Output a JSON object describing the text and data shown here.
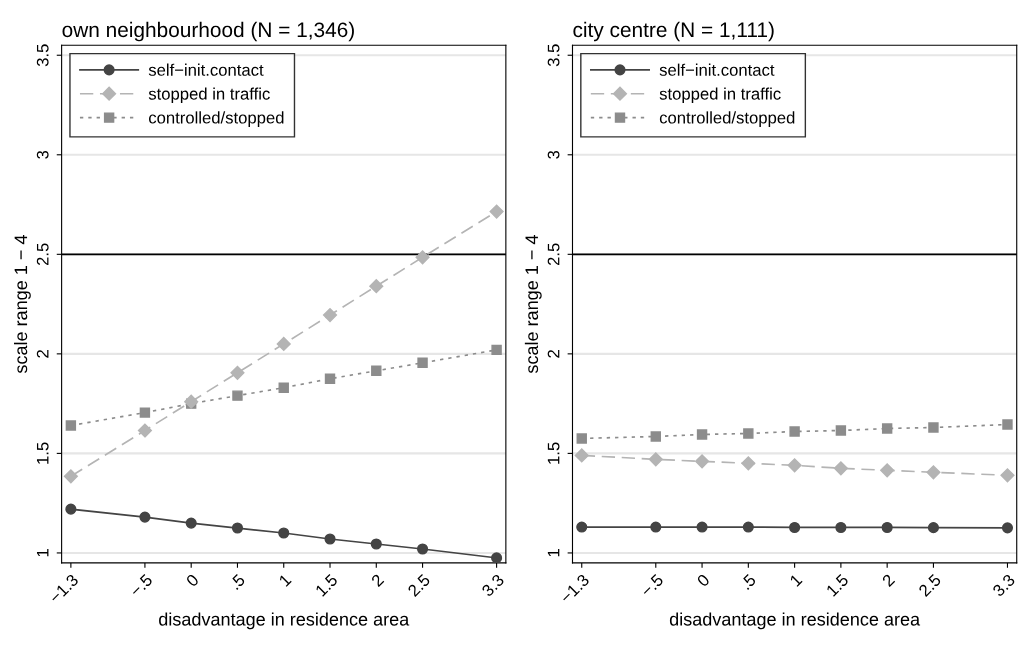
{
  "chart_data": [
    {
      "type": "line",
      "title": "own neighbourhood (N = 1,346)",
      "xlabel": "disadvantage in residence area",
      "ylabel": "scale range 1 − 4",
      "x": [
        -1.3,
        -0.5,
        0,
        0.5,
        1,
        1.5,
        2,
        2.5,
        3.3
      ],
      "xlim": [
        -1.4,
        3.4
      ],
      "ylim": [
        0.95,
        3.55
      ],
      "xticks": [
        {
          "value": -1.3,
          "label": "−1.3"
        },
        {
          "value": -0.5,
          "label": "−.5"
        },
        0,
        {
          "value": 0.5,
          "label": ".5"
        },
        1,
        1.5,
        2,
        2.5,
        3.3
      ],
      "yticks": [
        1,
        1.5,
        2,
        2.5,
        3,
        3.5
      ],
      "grid": "y",
      "legend": "top left",
      "ref_lines": [
        {
          "axis": "y",
          "value": 2.5,
          "label": null,
          "color": "#000000",
          "line_style": "solid"
        }
      ],
      "series": [
        {
          "name": "self−init.contact",
          "color": "#444444",
          "marker": "circle",
          "line_style": "solid",
          "values": [
            1.22,
            1.18,
            1.15,
            1.125,
            1.1,
            1.07,
            1.045,
            1.02,
            0.975
          ]
        },
        {
          "name": "stopped in traffic",
          "color": "#b4b4b4",
          "marker": "diamond",
          "line_style": "dashed",
          "values": [
            1.385,
            1.615,
            1.76,
            1.905,
            2.05,
            2.195,
            2.34,
            2.485,
            2.715
          ]
        },
        {
          "name": "controlled/stopped",
          "color": "#8c8c8c",
          "marker": "square",
          "line_style": "dotted",
          "values": [
            1.64,
            1.705,
            1.75,
            1.79,
            1.83,
            1.875,
            1.915,
            1.955,
            2.02
          ]
        }
      ]
    },
    {
      "type": "line",
      "title": "city centre (N = 1,111)",
      "xlabel": "disadvantage in residence area",
      "ylabel": "scale range 1 − 4",
      "x": [
        -1.3,
        -0.5,
        0,
        0.5,
        1,
        1.5,
        2,
        2.5,
        3.3
      ],
      "xlim": [
        -1.4,
        3.4
      ],
      "ylim": [
        0.95,
        3.55
      ],
      "xticks": [
        {
          "value": -1.3,
          "label": "−1.3"
        },
        {
          "value": -0.5,
          "label": "−.5"
        },
        0,
        {
          "value": 0.5,
          "label": ".5"
        },
        1,
        1.5,
        2,
        2.5,
        3.3
      ],
      "yticks": [
        1,
        1.5,
        2,
        2.5,
        3,
        3.5
      ],
      "grid": "y",
      "legend": "top left",
      "ref_lines": [
        {
          "axis": "y",
          "value": 2.5,
          "label": null,
          "color": "#000000",
          "line_style": "solid"
        }
      ],
      "series": [
        {
          "name": "self−init.contact",
          "color": "#444444",
          "marker": "circle",
          "line_style": "solid",
          "values": [
            1.13,
            1.13,
            1.13,
            1.13,
            1.128,
            1.128,
            1.128,
            1.127,
            1.126
          ]
        },
        {
          "name": "stopped in traffic",
          "color": "#b4b4b4",
          "marker": "diamond",
          "line_style": "dashed",
          "values": [
            1.49,
            1.47,
            1.46,
            1.45,
            1.44,
            1.425,
            1.415,
            1.405,
            1.39
          ]
        },
        {
          "name": "controlled/stopped",
          "color": "#8c8c8c",
          "marker": "square",
          "line_style": "dotted",
          "values": [
            1.575,
            1.585,
            1.595,
            1.6,
            1.61,
            1.615,
            1.625,
            1.63,
            1.645
          ]
        }
      ]
    }
  ]
}
